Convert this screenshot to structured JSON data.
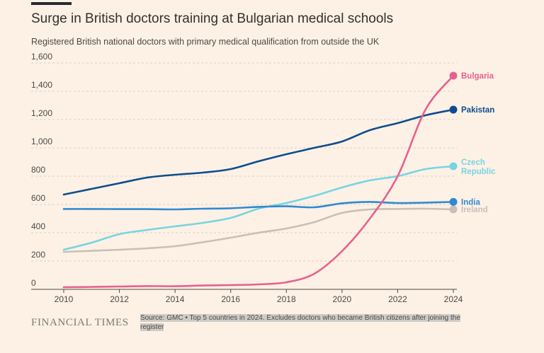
{
  "title": "Surge in British doctors training at Bulgarian medical schools",
  "subtitle": "Registered British national doctors with primary medical qualification from outside the UK",
  "brand": "FINANCIAL TIMES",
  "source": "Source: GMC • Top 5 countries in 2024. Excludes doctors who became British citizens after joining the register",
  "colors": {
    "background": "#fdf1e5",
    "bulgaria": "#e7608f",
    "pakistan": "#0d4d8e",
    "czech": "#76d5e1",
    "india": "#2f8ad1",
    "ireland": "#c8bfb8"
  },
  "chart_data": {
    "type": "line",
    "title": "Surge in British doctors training at Bulgarian medical schools",
    "subtitle": "Registered British national doctors with primary medical qualification from outside the UK",
    "xlabel": "",
    "ylabel": "",
    "xlim": [
      2010,
      2024
    ],
    "ylim": [
      0,
      1600
    ],
    "x_ticks": [
      "2010",
      "2012",
      "2014",
      "2016",
      "2018",
      "2020",
      "2022",
      "2024"
    ],
    "y_ticks": [
      "0",
      "200",
      "400",
      "600",
      "800",
      "1,000",
      "1,200",
      "1,400",
      "1,600"
    ],
    "grid": true,
    "x": [
      2010,
      2011,
      2012,
      2013,
      2014,
      2015,
      2016,
      2017,
      2018,
      2019,
      2020,
      2021,
      2022,
      2023,
      2024
    ],
    "series": [
      {
        "name": "Bulgaria",
        "label": "Bulgaria",
        "color": "#e7608f",
        "values": [
          15,
          17,
          20,
          23,
          22,
          27,
          30,
          35,
          50,
          110,
          270,
          500,
          800,
          1270,
          1510
        ]
      },
      {
        "name": "Pakistan",
        "label": "Pakistan",
        "color": "#0d4d8e",
        "values": [
          670,
          710,
          750,
          790,
          810,
          825,
          850,
          905,
          955,
          1000,
          1045,
          1125,
          1175,
          1230,
          1270
        ]
      },
      {
        "name": "Czech Republic",
        "label": "Czech Republic",
        "color": "#76d5e1",
        "values": [
          280,
          330,
          390,
          420,
          445,
          470,
          505,
          570,
          610,
          660,
          720,
          770,
          800,
          850,
          870
        ]
      },
      {
        "name": "India",
        "label": "India",
        "color": "#2f8ad1",
        "values": [
          568,
          568,
          567,
          567,
          565,
          570,
          573,
          583,
          587,
          580,
          608,
          618,
          610,
          613,
          618
        ]
      },
      {
        "name": "Ireland",
        "label": "Ireland",
        "color": "#c8bfb8",
        "values": [
          265,
          272,
          280,
          290,
          305,
          333,
          365,
          400,
          430,
          475,
          540,
          565,
          568,
          570,
          565
        ]
      }
    ]
  }
}
